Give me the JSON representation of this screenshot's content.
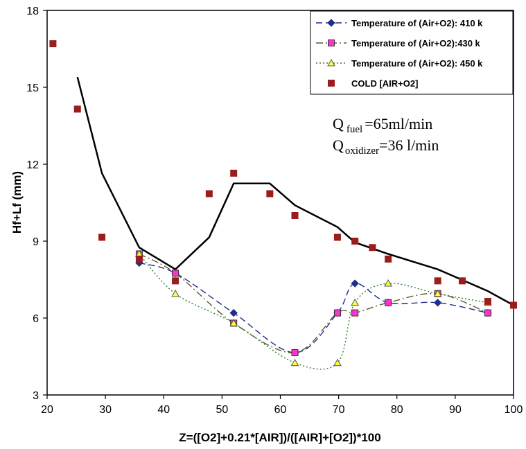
{
  "chart_data": {
    "type": "scatter",
    "title": "",
    "xlabel": "Z=([O2]+0.21*[AIR])/([AIR]+[O2])*100",
    "ylabel": "Hf+Lf (mm)",
    "xlim": [
      20,
      100
    ],
    "ylim": [
      3,
      18
    ],
    "xticks": [
      "20",
      "30",
      "40",
      "50",
      "60",
      "70",
      "80",
      "90",
      "100"
    ],
    "yticks": [
      "3",
      "6",
      "9",
      "12",
      "15",
      "18"
    ],
    "legend_position": "top-right",
    "series": [
      {
        "name": "Temperature of (Air+O2): 410 k",
        "marker": "diamond",
        "line": "dashed",
        "color": "#1f2d8c",
        "marker_color": "#1f2d8c",
        "x": [
          35.8,
          42.0,
          52.0,
          62.5,
          69.8,
          72.8,
          78.5,
          87.0,
          95.6
        ],
        "y": [
          8.15,
          7.75,
          6.2,
          4.65,
          6.2,
          7.35,
          6.6,
          6.6,
          6.2
        ]
      },
      {
        "name": "Temperature of (Air+O2):430 k",
        "marker": "square",
        "line": "dashdot",
        "color": "#5a5a2a",
        "marker_color": "#ff33cc",
        "x": [
          35.8,
          42.0,
          52.0,
          62.5,
          69.8,
          72.8,
          78.5,
          87.0,
          95.6
        ],
        "y": [
          8.5,
          7.75,
          5.8,
          4.65,
          6.2,
          6.2,
          6.6,
          6.95,
          6.2
        ]
      },
      {
        "name": "Temperature of (Air+O2): 450 k",
        "marker": "triangle",
        "line": "dotted",
        "color": "#2e7d32",
        "marker_color": "#ffff33",
        "x": [
          35.8,
          42.0,
          52.0,
          62.5,
          69.8,
          72.8,
          78.5,
          87.0,
          95.6
        ],
        "y": [
          8.5,
          6.95,
          5.8,
          4.25,
          4.25,
          6.6,
          7.35,
          6.95,
          6.6
        ]
      },
      {
        "name": "COLD [AIR+O2]",
        "marker": "square",
        "line": "none",
        "color": "#9b1c1c",
        "marker_color": "#9b1c1c",
        "x": [
          21.0,
          25.2,
          29.4,
          35.8,
          42.0,
          47.8,
          52.0,
          58.2,
          62.5,
          69.8,
          72.8,
          75.8,
          78.5,
          87.0,
          91.2,
          95.6,
          100.0
        ],
        "y": [
          16.7,
          14.15,
          9.15,
          8.3,
          7.45,
          10.85,
          11.65,
          10.85,
          10.0,
          9.15,
          9.0,
          8.75,
          8.3,
          7.45,
          7.45,
          6.65,
          6.5
        ]
      }
    ],
    "trend_line": {
      "color": "#000000",
      "x": [
        25.2,
        29.4,
        35.8,
        42.0,
        47.8,
        52.0,
        58.2,
        62.5,
        69.8,
        72.8,
        78.5,
        87.0,
        95.6,
        100.0
      ],
      "y": [
        15.4,
        11.65,
        8.75,
        7.9,
        9.15,
        11.25,
        11.25,
        10.4,
        9.55,
        8.95,
        8.5,
        7.9,
        7.05,
        6.5
      ]
    },
    "annotation": {
      "line1_main": "Q",
      "line1_sub": "fuel",
      "line1_rest": "=65ml/min",
      "line2_main": "Q",
      "line2_sub": "oxidizer",
      "line2_rest": "=36 l/min"
    }
  }
}
